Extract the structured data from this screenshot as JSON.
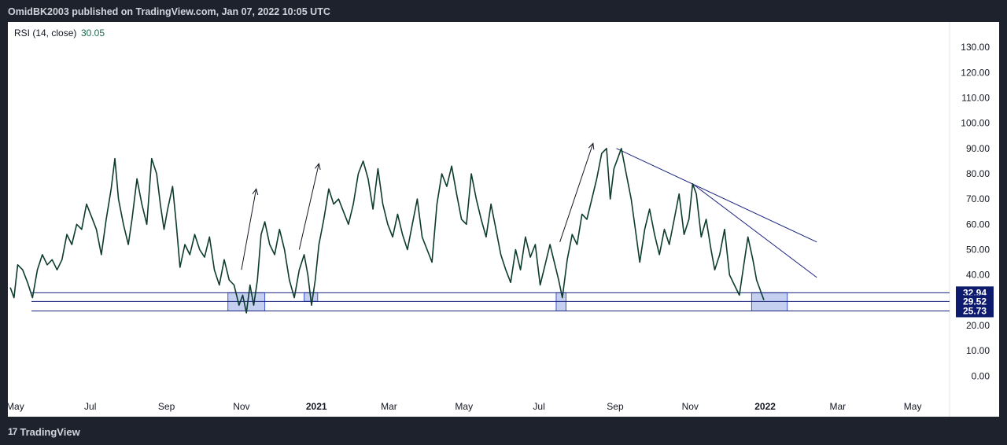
{
  "header": {
    "attribution": "OmidBK2003 published on TradingView.com, Jan 07, 2022 10:05 UTC"
  },
  "footer": {
    "brand": "TradingView",
    "logo_glyph": "17"
  },
  "colors": {
    "line": "#0d3b2e",
    "level": "#1a237e",
    "zone_fill": "#c5cff0",
    "zone_stroke": "#3c56c8",
    "badge": "#0d1a6e"
  },
  "chart_data": {
    "type": "line",
    "title": "RSI (14, close)",
    "last_value": "30.05",
    "x_range": [
      "2020-04-25",
      "2022-05-31"
    ],
    "ylim": [
      -8,
      140
    ],
    "y_ticks": [
      "130.00",
      "120.00",
      "110.00",
      "100.00",
      "90.00",
      "80.00",
      "70.00",
      "60.00",
      "50.00",
      "40.00",
      "30.00",
      "20.00",
      "10.00",
      "0.00"
    ],
    "y_tick_values": [
      130,
      120,
      110,
      100,
      90,
      80,
      70,
      60,
      50,
      40,
      30,
      20,
      10,
      0
    ],
    "x_ticks": [
      {
        "label": "May",
        "date": "2020-05-01"
      },
      {
        "label": "Jul",
        "date": "2020-07-01"
      },
      {
        "label": "Sep",
        "date": "2020-09-01"
      },
      {
        "label": "Nov",
        "date": "2020-11-01"
      },
      {
        "label": "2021",
        "date": "2021-01-01",
        "bold": true
      },
      {
        "label": "Mar",
        "date": "2021-03-01"
      },
      {
        "label": "May",
        "date": "2021-05-01"
      },
      {
        "label": "Jul",
        "date": "2021-07-01"
      },
      {
        "label": "Sep",
        "date": "2021-09-01"
      },
      {
        "label": "Nov",
        "date": "2021-11-01"
      },
      {
        "label": "2022",
        "date": "2022-01-01",
        "bold": true
      },
      {
        "label": "Mar",
        "date": "2022-03-01"
      },
      {
        "label": "May",
        "date": "2022-05-01"
      }
    ],
    "levels": [
      {
        "value": 32.94,
        "label": "32.94"
      },
      {
        "value": 29.52,
        "label": "29.52"
      },
      {
        "value": 25.73,
        "label": "25.73"
      }
    ],
    "zones": [
      {
        "from": "2020-10-21",
        "to": "2020-11-20",
        "low": 25.73,
        "high": 32.94
      },
      {
        "from": "2020-12-22",
        "to": "2021-01-02",
        "low": 29.52,
        "high": 32.94
      },
      {
        "from": "2021-07-15",
        "to": "2021-07-23",
        "low": 25.73,
        "high": 32.94
      },
      {
        "from": "2021-12-21",
        "to": "2022-01-19",
        "low": 25.73,
        "high": 32.94
      }
    ],
    "trendlines": [
      {
        "from": [
          "2021-09-02",
          90
        ],
        "to": [
          "2022-02-12",
          53
        ]
      },
      {
        "from": [
          "2021-11-03",
          76
        ],
        "to": [
          "2022-02-12",
          39
        ]
      }
    ],
    "arrows": [
      {
        "from": [
          "2020-11-01",
          42
        ],
        "to": [
          "2020-11-13",
          74
        ]
      },
      {
        "from": [
          "2020-12-18",
          50
        ],
        "to": [
          "2021-01-03",
          84
        ]
      },
      {
        "from": [
          "2021-07-18",
          53
        ],
        "to": [
          "2021-08-14",
          92
        ]
      }
    ],
    "points": [
      [
        "2020-04-27",
        35
      ],
      [
        "2020-04-30",
        31
      ],
      [
        "2020-05-03",
        44
      ],
      [
        "2020-05-07",
        42
      ],
      [
        "2020-05-11",
        37
      ],
      [
        "2020-05-15",
        31
      ],
      [
        "2020-05-19",
        42
      ],
      [
        "2020-05-23",
        48
      ],
      [
        "2020-05-27",
        44
      ],
      [
        "2020-05-31",
        46
      ],
      [
        "2020-06-04",
        42
      ],
      [
        "2020-06-08",
        46
      ],
      [
        "2020-06-12",
        56
      ],
      [
        "2020-06-16",
        52
      ],
      [
        "2020-06-20",
        60
      ],
      [
        "2020-06-24",
        58
      ],
      [
        "2020-06-28",
        68
      ],
      [
        "2020-07-02",
        63
      ],
      [
        "2020-07-06",
        58
      ],
      [
        "2020-07-10",
        48
      ],
      [
        "2020-07-14",
        62
      ],
      [
        "2020-07-18",
        74
      ],
      [
        "2020-07-21",
        86
      ],
      [
        "2020-07-24",
        70
      ],
      [
        "2020-07-28",
        60
      ],
      [
        "2020-08-01",
        52
      ],
      [
        "2020-08-04",
        62
      ],
      [
        "2020-08-08",
        78
      ],
      [
        "2020-08-12",
        68
      ],
      [
        "2020-08-16",
        60
      ],
      [
        "2020-08-20",
        86
      ],
      [
        "2020-08-24",
        80
      ],
      [
        "2020-08-27",
        68
      ],
      [
        "2020-08-30",
        58
      ],
      [
        "2020-09-02",
        66
      ],
      [
        "2020-09-06",
        75
      ],
      [
        "2020-09-09",
        60
      ],
      [
        "2020-09-12",
        43
      ],
      [
        "2020-09-16",
        52
      ],
      [
        "2020-09-20",
        48
      ],
      [
        "2020-09-24",
        56
      ],
      [
        "2020-09-28",
        50
      ],
      [
        "2020-10-02",
        47
      ],
      [
        "2020-10-06",
        55
      ],
      [
        "2020-10-10",
        42
      ],
      [
        "2020-10-14",
        36
      ],
      [
        "2020-10-18",
        46
      ],
      [
        "2020-10-22",
        38
      ],
      [
        "2020-10-26",
        36
      ],
      [
        "2020-10-30",
        28
      ],
      [
        "2020-11-02",
        32
      ],
      [
        "2020-11-05",
        25
      ],
      [
        "2020-11-08",
        36
      ],
      [
        "2020-11-11",
        28
      ],
      [
        "2020-11-14",
        38
      ],
      [
        "2020-11-17",
        56
      ],
      [
        "2020-11-20",
        61
      ],
      [
        "2020-11-24",
        52
      ],
      [
        "2020-11-28",
        48
      ],
      [
        "2020-12-02",
        58
      ],
      [
        "2020-12-06",
        50
      ],
      [
        "2020-12-10",
        38
      ],
      [
        "2020-12-14",
        31
      ],
      [
        "2020-12-18",
        42
      ],
      [
        "2020-12-22",
        48
      ],
      [
        "2020-12-25",
        40
      ],
      [
        "2020-12-28",
        28
      ],
      [
        "2020-12-31",
        38
      ],
      [
        "2021-01-03",
        52
      ],
      [
        "2021-01-07",
        62
      ],
      [
        "2021-01-11",
        74
      ],
      [
        "2021-01-15",
        68
      ],
      [
        "2021-01-19",
        70
      ],
      [
        "2021-01-23",
        65
      ],
      [
        "2021-01-27",
        60
      ],
      [
        "2021-01-31",
        68
      ],
      [
        "2021-02-04",
        80
      ],
      [
        "2021-02-08",
        85
      ],
      [
        "2021-02-12",
        78
      ],
      [
        "2021-02-16",
        66
      ],
      [
        "2021-02-20",
        82
      ],
      [
        "2021-02-24",
        68
      ],
      [
        "2021-02-28",
        60
      ],
      [
        "2021-03-04",
        55
      ],
      [
        "2021-03-08",
        64
      ],
      [
        "2021-03-12",
        56
      ],
      [
        "2021-03-16",
        50
      ],
      [
        "2021-03-20",
        60
      ],
      [
        "2021-03-24",
        70
      ],
      [
        "2021-03-28",
        55
      ],
      [
        "2021-04-01",
        50
      ],
      [
        "2021-04-05",
        45
      ],
      [
        "2021-04-09",
        68
      ],
      [
        "2021-04-13",
        80
      ],
      [
        "2021-04-17",
        75
      ],
      [
        "2021-04-21",
        83
      ],
      [
        "2021-04-25",
        72
      ],
      [
        "2021-04-29",
        62
      ],
      [
        "2021-05-03",
        60
      ],
      [
        "2021-05-07",
        80
      ],
      [
        "2021-05-11",
        70
      ],
      [
        "2021-05-15",
        62
      ],
      [
        "2021-05-19",
        55
      ],
      [
        "2021-05-23",
        68
      ],
      [
        "2021-05-27",
        58
      ],
      [
        "2021-05-31",
        48
      ],
      [
        "2021-06-04",
        42
      ],
      [
        "2021-06-08",
        37
      ],
      [
        "2021-06-12",
        50
      ],
      [
        "2021-06-16",
        42
      ],
      [
        "2021-06-20",
        55
      ],
      [
        "2021-06-24",
        47
      ],
      [
        "2021-06-28",
        52
      ],
      [
        "2021-07-02",
        36
      ],
      [
        "2021-07-06",
        44
      ],
      [
        "2021-07-10",
        52
      ],
      [
        "2021-07-14",
        44
      ],
      [
        "2021-07-17",
        38
      ],
      [
        "2021-07-20",
        31
      ],
      [
        "2021-07-24",
        46
      ],
      [
        "2021-07-28",
        56
      ],
      [
        "2021-08-01",
        52
      ],
      [
        "2021-08-05",
        64
      ],
      [
        "2021-08-09",
        62
      ],
      [
        "2021-08-13",
        70
      ],
      [
        "2021-08-17",
        78
      ],
      [
        "2021-08-21",
        88
      ],
      [
        "2021-08-25",
        90
      ],
      [
        "2021-08-28",
        70
      ],
      [
        "2021-08-31",
        82
      ],
      [
        "2021-09-03",
        86
      ],
      [
        "2021-09-06",
        90
      ],
      [
        "2021-09-10",
        80
      ],
      [
        "2021-09-14",
        70
      ],
      [
        "2021-09-18",
        56
      ],
      [
        "2021-09-21",
        45
      ],
      [
        "2021-09-25",
        58
      ],
      [
        "2021-09-29",
        66
      ],
      [
        "2021-10-03",
        56
      ],
      [
        "2021-10-07",
        48
      ],
      [
        "2021-10-11",
        58
      ],
      [
        "2021-10-15",
        52
      ],
      [
        "2021-10-19",
        62
      ],
      [
        "2021-10-23",
        72
      ],
      [
        "2021-10-27",
        56
      ],
      [
        "2021-10-31",
        62
      ],
      [
        "2021-11-03",
        76
      ],
      [
        "2021-11-06",
        72
      ],
      [
        "2021-11-10",
        55
      ],
      [
        "2021-11-14",
        62
      ],
      [
        "2021-11-18",
        50
      ],
      [
        "2021-11-21",
        42
      ],
      [
        "2021-11-25",
        48
      ],
      [
        "2021-11-29",
        58
      ],
      [
        "2021-12-03",
        40
      ],
      [
        "2021-12-07",
        36
      ],
      [
        "2021-12-11",
        32
      ],
      [
        "2021-12-14",
        42
      ],
      [
        "2021-12-18",
        55
      ],
      [
        "2021-12-22",
        46
      ],
      [
        "2021-12-25",
        38
      ],
      [
        "2021-12-28",
        34
      ],
      [
        "2021-12-31",
        30.05
      ]
    ]
  }
}
